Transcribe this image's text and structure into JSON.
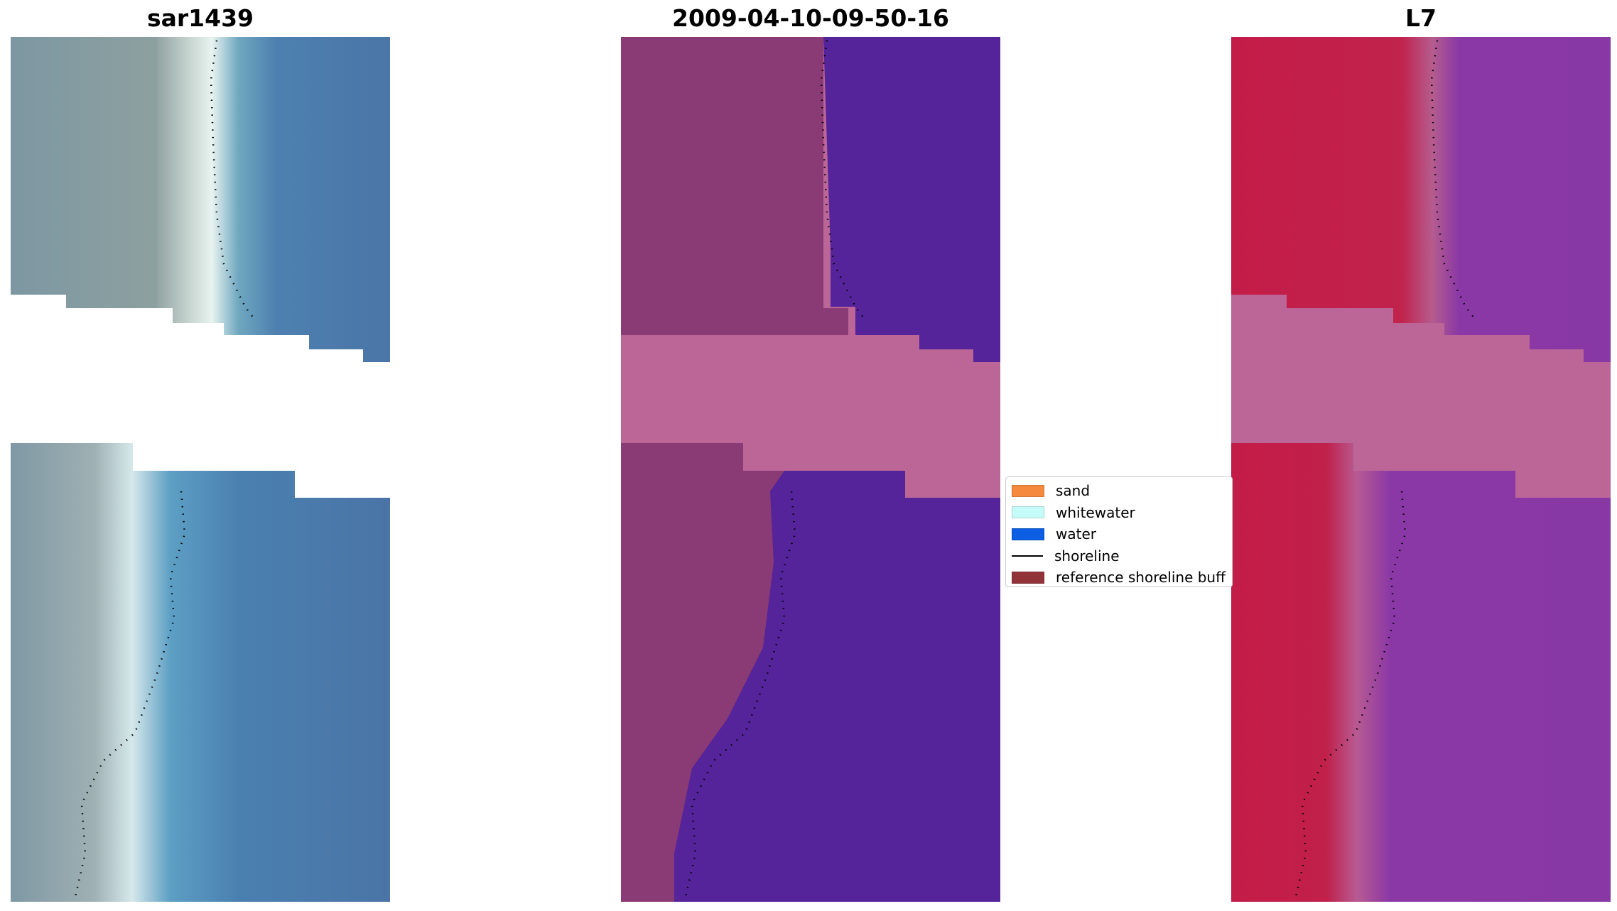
{
  "panels": [
    {
      "title": "sar1439"
    },
    {
      "title": "2009-04-10-09-50-16"
    },
    {
      "title": "L7"
    }
  ],
  "legend": {
    "items": [
      {
        "label": "sand",
        "color": "#f58a3f",
        "kind": "patch"
      },
      {
        "label": "whitewater",
        "color": "#c5fcf9",
        "kind": "patch"
      },
      {
        "label": "water",
        "color": "#0c5ee3",
        "kind": "patch"
      },
      {
        "label": "shoreline",
        "color": "#000000",
        "kind": "line"
      },
      {
        "label": "reference shoreline buff",
        "color": "#92333a",
        "kind": "patch"
      }
    ]
  },
  "colors": {
    "no_data": "#bb6696",
    "classified_water": "#55239a",
    "classified_land": "#8a3a74",
    "rgb_water": "#4a7aab",
    "rgb_land": "#8098a3",
    "l7_land": "#c41c48",
    "l7_water": "#8a38a6"
  }
}
